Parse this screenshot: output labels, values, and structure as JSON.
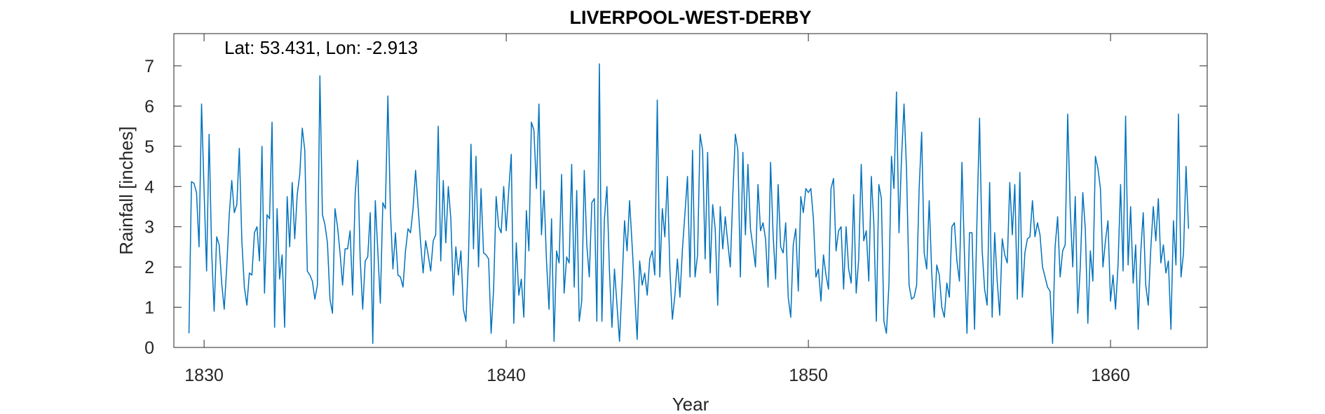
{
  "chart_data": {
    "type": "line",
    "title": "LIVERPOOL-WEST-DERBY",
    "annotation": "Lat: 53.431, Lon: -2.913",
    "xlabel": "Year",
    "ylabel": "Rainfall [inches]",
    "xlim": [
      1829,
      1863.2
    ],
    "ylim": [
      0,
      7.8
    ],
    "xticks": [
      1830,
      1840,
      1850,
      1860
    ],
    "yticks": [
      0,
      1,
      2,
      3,
      4,
      5,
      6,
      7
    ],
    "grid": false,
    "line_color": "#0072BD",
    "series": [
      {
        "start_year": 1829.5,
        "step": 0.08333,
        "values": [
          0.35,
          4.12,
          4.08,
          3.85,
          2.5,
          6.05,
          3.9,
          1.9,
          5.3,
          2.4,
          0.9,
          2.75,
          2.55,
          1.6,
          0.95,
          2.0,
          3.3,
          4.15,
          3.35,
          3.55,
          4.95,
          2.65,
          1.5,
          1.05,
          1.85,
          1.8,
          2.85,
          3.0,
          2.15,
          5.0,
          1.35,
          3.3,
          3.2,
          5.6,
          0.5,
          3.45,
          1.7,
          2.3,
          0.5,
          3.75,
          2.5,
          4.1,
          2.7,
          3.8,
          4.3,
          5.45,
          4.9,
          1.9,
          1.8,
          1.65,
          1.2,
          1.55,
          6.75,
          3.3,
          3.05,
          2.6,
          1.2,
          0.85,
          3.45,
          3.0,
          2.35,
          1.55,
          2.45,
          2.45,
          2.9,
          1.3,
          3.8,
          4.65,
          2.2,
          0.95,
          2.15,
          2.25,
          3.35,
          0.1,
          3.65,
          2.4,
          1.1,
          3.6,
          3.45,
          6.25,
          3.4,
          1.95,
          2.85,
          1.8,
          1.75,
          1.5,
          2.4,
          2.95,
          2.85,
          3.45,
          4.4,
          3.5,
          2.6,
          1.85,
          2.65,
          2.3,
          1.9,
          2.65,
          2.8,
          5.5,
          2.15,
          4.15,
          2.6,
          4.0,
          3.2,
          1.3,
          2.5,
          1.8,
          2.4,
          0.95,
          0.65,
          2.2,
          5.05,
          2.45,
          4.75,
          2.0,
          3.95,
          2.35,
          2.3,
          2.2,
          0.35,
          1.45,
          3.75,
          3.0,
          2.85,
          4.0,
          2.9,
          3.9,
          4.8,
          0.6,
          2.6,
          1.3,
          1.7,
          0.75,
          3.4,
          2.4,
          5.6,
          5.4,
          3.95,
          6.05,
          2.8,
          3.9,
          2.15,
          0.95,
          3.2,
          0.15,
          2.4,
          2.1,
          4.3,
          1.35,
          2.25,
          2.1,
          4.55,
          1.5,
          3.9,
          0.65,
          1.15,
          4.4,
          2.55,
          1.75,
          3.6,
          3.7,
          0.65,
          7.05,
          0.65,
          3.2,
          4.0,
          1.9,
          0.5,
          1.95,
          1.05,
          0.15,
          1.55,
          3.15,
          2.4,
          3.65,
          2.55,
          1.4,
          0.2,
          2.15,
          1.55,
          1.85,
          1.3,
          2.2,
          2.4,
          1.8,
          6.15,
          1.75,
          3.45,
          2.75,
          4.25,
          1.95,
          0.7,
          1.3,
          2.2,
          1.25,
          2.45,
          3.35,
          4.25,
          1.75,
          4.9,
          1.75,
          2.3,
          5.3,
          4.9,
          2.2,
          4.85,
          1.85,
          3.55,
          2.95,
          1.05,
          3.5,
          2.45,
          3.25,
          2.6,
          2.0,
          3.8,
          5.3,
          4.9,
          1.75,
          4.85,
          2.8,
          4.55,
          2.95,
          2.5,
          2.0,
          4.05,
          2.9,
          3.1,
          2.7,
          1.5,
          4.6,
          2.8,
          1.7,
          4.05,
          2.5,
          2.35,
          3.1,
          1.25,
          0.75,
          2.55,
          2.95,
          1.4,
          3.75,
          3.35,
          3.95,
          3.85,
          3.95,
          3.2,
          1.75,
          1.95,
          1.15,
          2.3,
          1.8,
          1.45,
          3.95,
          4.2,
          2.4,
          2.9,
          3.0,
          1.45,
          3.0,
          1.95,
          1.6,
          3.8,
          1.35,
          2.2,
          4.55,
          2.65,
          2.9,
          1.65,
          4.25,
          3.1,
          0.65,
          4.05,
          3.7,
          0.65,
          0.35,
          1.55,
          4.75,
          3.95,
          6.35,
          2.85,
          4.7,
          6.05,
          4.4,
          1.55,
          1.2,
          1.25,
          1.55,
          3.95,
          5.35,
          2.35,
          1.95,
          3.65,
          1.85,
          0.75,
          2.05,
          1.8,
          1.0,
          0.75,
          1.6,
          1.25,
          3.0,
          3.1,
          2.15,
          1.65,
          4.6,
          2.3,
          0.35,
          2.85,
          2.85,
          0.45,
          3.25,
          5.7,
          2.45,
          1.45,
          1.05,
          4.1,
          0.75,
          2.85,
          1.65,
          0.8,
          2.7,
          2.3,
          2.1,
          4.1,
          2.8,
          4.05,
          1.2,
          4.35,
          1.25,
          2.35,
          2.7,
          2.75,
          3.65,
          2.75,
          3.1,
          2.8,
          2.0,
          1.75,
          1.5,
          1.4,
          0.1,
          2.5,
          3.25,
          1.75,
          2.4,
          2.55,
          5.8,
          3.45,
          2.0,
          3.75,
          0.85,
          2.0,
          3.85,
          2.95,
          0.6,
          2.4,
          1.65,
          4.75,
          4.45,
          3.95,
          2.0,
          2.65,
          3.15,
          1.15,
          1.8,
          0.95,
          2.05,
          4.05,
          1.9,
          5.75,
          2.05,
          3.5,
          1.6,
          2.55,
          0.45,
          2.35,
          3.35,
          1.55,
          1.05,
          2.45,
          3.5,
          2.65,
          3.7,
          2.1,
          2.55,
          1.85,
          2.15,
          0.45,
          3.15,
          2.05,
          5.8,
          1.75,
          2.35,
          4.5,
          2.95
        ]
      }
    ]
  }
}
